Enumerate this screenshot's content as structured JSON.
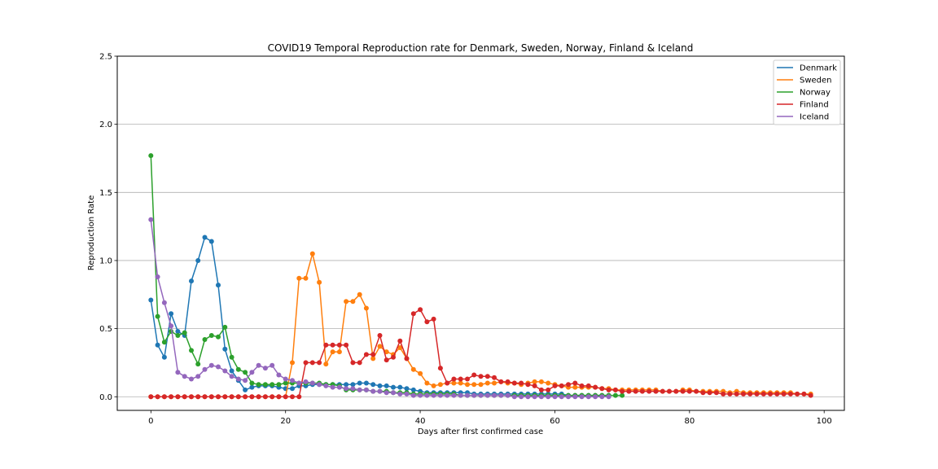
{
  "chart_data": {
    "type": "line",
    "title": "COVID19 Temporal Reproduction rate for Denmark, Sweden, Norway, Finland & Iceland",
    "xlabel": "Days after first confirmed case",
    "ylabel": "Reproduction Rate",
    "xlim": [
      -5,
      103
    ],
    "ylim": [
      -0.1,
      2.5
    ],
    "xticks": [
      0,
      20,
      40,
      60,
      80,
      100
    ],
    "yticks": [
      0.0,
      0.5,
      1.0,
      1.5,
      2.0,
      2.5
    ],
    "xtick_labels": [
      "0",
      "20",
      "40",
      "60",
      "80",
      "100"
    ],
    "ytick_labels": [
      "0.0",
      "0.5",
      "1.0",
      "1.5",
      "2.0",
      "2.5"
    ],
    "grid": "horizontal",
    "legend_position": "top-right",
    "markers": true,
    "series": [
      {
        "name": "Denmark",
        "color": "#1f77b4",
        "x_start": 0,
        "values": [
          0.71,
          0.38,
          0.29,
          0.61,
          0.48,
          0.45,
          0.85,
          1.0,
          1.17,
          1.14,
          0.82,
          0.35,
          0.19,
          0.12,
          0.05,
          0.07,
          0.08,
          0.08,
          0.08,
          0.07,
          0.06,
          0.06,
          0.08,
          0.08,
          0.09,
          0.09,
          0.09,
          0.09,
          0.09,
          0.09,
          0.09,
          0.1,
          0.1,
          0.09,
          0.08,
          0.08,
          0.07,
          0.07,
          0.06,
          0.05,
          0.04,
          0.03,
          0.03,
          0.03,
          0.03,
          0.03,
          0.03,
          0.03,
          0.02,
          0.02,
          0.02,
          0.02,
          0.02,
          0.02,
          0.02,
          0.02,
          0.02,
          0.02,
          0.02,
          0.02,
          0.02,
          0.02,
          0.01,
          0.01,
          0.01,
          0.01,
          0.01,
          0.01,
          0.01
        ]
      },
      {
        "name": "Sweden",
        "color": "#ff7f0e",
        "x_start": 0,
        "values": [
          0.0,
          0.0,
          0.0,
          0.0,
          0.0,
          0.0,
          0.0,
          0.0,
          0.0,
          0.0,
          0.0,
          0.0,
          0.0,
          0.0,
          0.0,
          0.0,
          0.0,
          0.0,
          0.0,
          0.0,
          0.0,
          0.25,
          0.87,
          0.87,
          1.05,
          0.84,
          0.24,
          0.33,
          0.33,
          0.7,
          0.7,
          0.75,
          0.65,
          0.28,
          0.37,
          0.33,
          0.31,
          0.36,
          0.28,
          0.2,
          0.17,
          0.1,
          0.08,
          0.09,
          0.1,
          0.1,
          0.1,
          0.09,
          0.09,
          0.09,
          0.1,
          0.1,
          0.11,
          0.1,
          0.1,
          0.09,
          0.1,
          0.11,
          0.11,
          0.1,
          0.09,
          0.08,
          0.07,
          0.07,
          0.07,
          0.07,
          0.07,
          0.06,
          0.06,
          0.05,
          0.05,
          0.05,
          0.05,
          0.05,
          0.05,
          0.05,
          0.04,
          0.04,
          0.04,
          0.05,
          0.05,
          0.04,
          0.04,
          0.04,
          0.04,
          0.04,
          0.03,
          0.04,
          0.03,
          0.03,
          0.03,
          0.03,
          0.03,
          0.03,
          0.03,
          0.03,
          0.02,
          0.02,
          0.02
        ]
      },
      {
        "name": "Norway",
        "color": "#2ca02c",
        "x_start": 0,
        "values": [
          1.77,
          0.59,
          0.4,
          0.48,
          0.45,
          0.47,
          0.34,
          0.24,
          0.42,
          0.45,
          0.44,
          0.51,
          0.29,
          0.2,
          0.18,
          0.1,
          0.09,
          0.09,
          0.09,
          0.09,
          0.1,
          0.1,
          0.1,
          0.1,
          0.1,
          0.1,
          0.09,
          0.09,
          0.08,
          0.05,
          0.05,
          0.05,
          0.05,
          0.04,
          0.04,
          0.04,
          0.03,
          0.03,
          0.03,
          0.02,
          0.02,
          0.02,
          0.02,
          0.02,
          0.02,
          0.02,
          0.01,
          0.01,
          0.01,
          0.01,
          0.01,
          0.01,
          0.01,
          0.01,
          0.01,
          0.01,
          0.01,
          0.01,
          0.01,
          0.01,
          0.01,
          0.01,
          0.01,
          0.01,
          0.01,
          0.01,
          0.01,
          0.01,
          0.01,
          0.01,
          0.01
        ]
      },
      {
        "name": "Finland",
        "color": "#d62728",
        "x_start": 0,
        "values": [
          0.0,
          0.0,
          0.0,
          0.0,
          0.0,
          0.0,
          0.0,
          0.0,
          0.0,
          0.0,
          0.0,
          0.0,
          0.0,
          0.0,
          0.0,
          0.0,
          0.0,
          0.0,
          0.0,
          0.0,
          0.0,
          0.0,
          0.0,
          0.25,
          0.25,
          0.25,
          0.38,
          0.38,
          0.38,
          0.38,
          0.25,
          0.25,
          0.31,
          0.31,
          0.45,
          0.27,
          0.29,
          0.41,
          0.28,
          0.61,
          0.64,
          0.55,
          0.57,
          0.21,
          0.1,
          0.13,
          0.13,
          0.13,
          0.16,
          0.15,
          0.15,
          0.14,
          0.11,
          0.11,
          0.1,
          0.1,
          0.09,
          0.08,
          0.05,
          0.05,
          0.08,
          0.08,
          0.09,
          0.1,
          0.08,
          0.08,
          0.07,
          0.06,
          0.05,
          0.05,
          0.04,
          0.04,
          0.04,
          0.04,
          0.04,
          0.04,
          0.04,
          0.04,
          0.04,
          0.04,
          0.04,
          0.04,
          0.03,
          0.03,
          0.03,
          0.02,
          0.02,
          0.02,
          0.02,
          0.02,
          0.02,
          0.02,
          0.02,
          0.02,
          0.02,
          0.02,
          0.02,
          0.02,
          0.01
        ]
      },
      {
        "name": "Iceland",
        "color": "#9467bd",
        "x_start": 0,
        "values": [
          1.3,
          0.88,
          0.69,
          0.52,
          0.18,
          0.15,
          0.13,
          0.15,
          0.2,
          0.23,
          0.22,
          0.19,
          0.15,
          0.13,
          0.12,
          0.18,
          0.23,
          0.21,
          0.23,
          0.16,
          0.13,
          0.12,
          0.1,
          0.11,
          0.1,
          0.09,
          0.08,
          0.07,
          0.07,
          0.06,
          0.06,
          0.05,
          0.05,
          0.04,
          0.04,
          0.03,
          0.03,
          0.02,
          0.02,
          0.01,
          0.01,
          0.01,
          0.01,
          0.01,
          0.01,
          0.01,
          0.01,
          0.01,
          0.01,
          0.01,
          0.01,
          0.01,
          0.01,
          0.01,
          0.0,
          0.0,
          0.0,
          0.0,
          0.0,
          0.0,
          0.0,
          0.0,
          0.0,
          0.0,
          0.0,
          0.0,
          0.0,
          0.0,
          0.0
        ]
      }
    ]
  }
}
